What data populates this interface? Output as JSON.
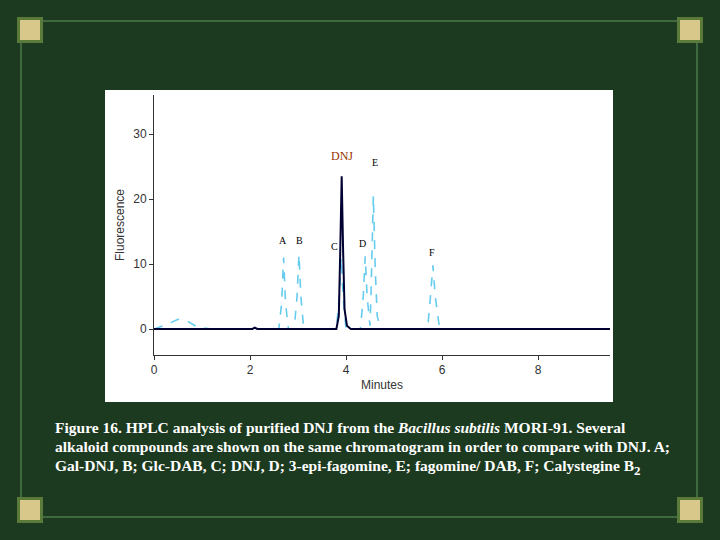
{
  "chart_data": {
    "type": "line",
    "x_label": "Minutes",
    "y_label": "Fluorescence",
    "xlim": [
      0,
      9.5
    ],
    "ylim": [
      -4,
      36
    ],
    "xticks": [
      0,
      2,
      4,
      6,
      8
    ],
    "yticks": [
      0,
      10,
      20,
      30
    ],
    "grid": false,
    "series": [
      {
        "color": "#66ccee",
        "line_style": "dash",
        "x": [
          0,
          0.3,
          0.5,
          0.7,
          0.9,
          1.2,
          2.0,
          2.1,
          2.2,
          2.6,
          2.66,
          2.7,
          2.74,
          2.8,
          2.92,
          2.98,
          3.02,
          3.06,
          3.12,
          3.8,
          3.86,
          3.9,
          3.94,
          4.0,
          4.3,
          4.36,
          4.4,
          4.44,
          4.5,
          4.52,
          4.57,
          4.61,
          4.65,
          4.72,
          5.3,
          5.35,
          5.4,
          5.7,
          5.76,
          5.81,
          5.86,
          5.95,
          9.5
        ],
        "values": [
          0,
          0.8,
          1.5,
          1.2,
          0.3,
          0,
          0,
          0.3,
          0,
          0,
          4,
          11,
          4,
          0,
          0,
          5,
          11.5,
          5,
          0,
          0,
          5,
          11,
          5,
          0,
          0,
          5,
          11.2,
          5,
          0.5,
          5,
          20.5,
          9,
          2,
          0,
          0,
          0.2,
          0,
          0,
          5,
          9.8,
          5,
          0,
          0
        ]
      },
      {
        "color": "#000033",
        "line_style": "solid",
        "x": [
          0,
          2.05,
          2.1,
          2.15,
          3.8,
          3.85,
          3.88,
          3.91,
          3.94,
          3.97,
          4.02,
          4.1,
          9.5
        ],
        "values": [
          0,
          0,
          0.2,
          0,
          0,
          2,
          12,
          23.5,
          12,
          3,
          0.5,
          0,
          0
        ]
      }
    ],
    "annotations": [
      {
        "text": "DNJ",
        "x": 3.92,
        "y": 25.2,
        "color": "#993300"
      },
      {
        "text": "E",
        "x": 4.6,
        "y": 24.5,
        "color": "#000000"
      },
      {
        "text": "A",
        "x": 2.68,
        "y": 12.4,
        "color": "#000000"
      },
      {
        "text": "B",
        "x": 3.03,
        "y": 12.4,
        "color": "#000000"
      },
      {
        "text": "C",
        "x": 3.77,
        "y": 11.5,
        "color": "#000000"
      },
      {
        "text": "D",
        "x": 4.35,
        "y": 12.0,
        "color": "#000000"
      },
      {
        "text": "F",
        "x": 5.8,
        "y": 10.6,
        "color": "#000000"
      }
    ]
  },
  "caption": [
    {
      "text": "Figure 16. HPLC analysis of purified DNJ from the ",
      "style": "normal"
    },
    {
      "text": "Bacillus subtilis",
      "style": "italic"
    },
    {
      "text": " MORI-91. Several alkaloid compounds are shown on the same chromatogram in order to compare with DNJ. A; Gal-DNJ, B; Glc-DAB, C; DNJ, D; 3-epi-fagomine, E; fagomine/ DAB, F; Calystegine B",
      "style": "normal"
    },
    {
      "text": "2",
      "style": "subscript"
    }
  ]
}
